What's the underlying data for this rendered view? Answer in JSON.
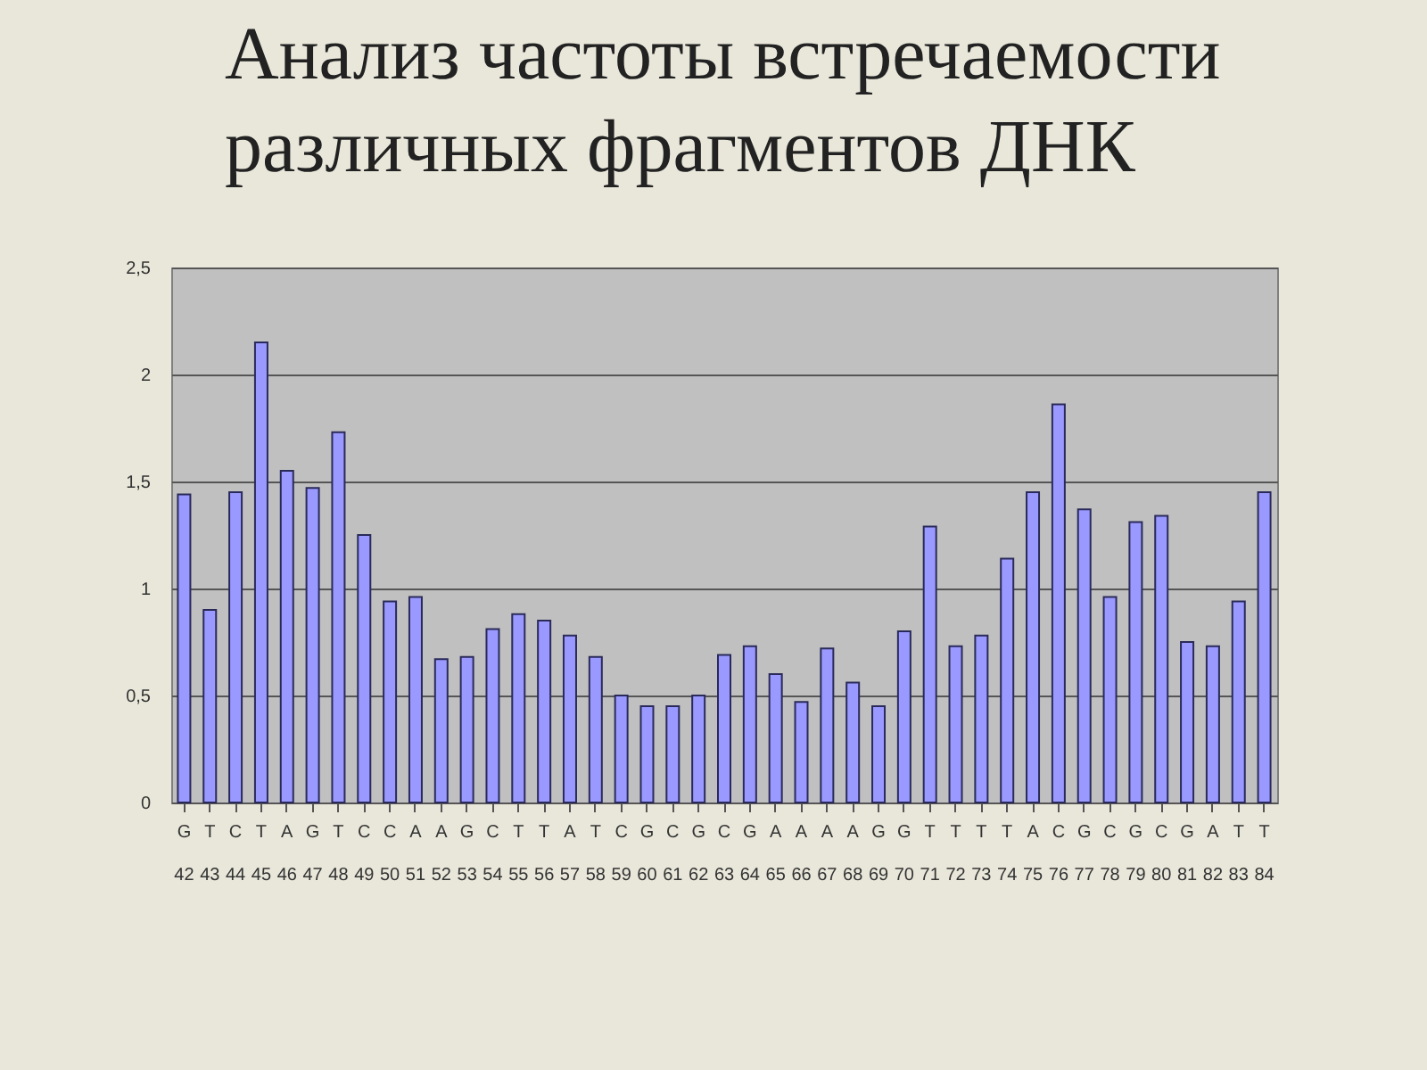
{
  "chart_data": {
    "type": "bar",
    "title": "Анализ частоты встречаемости\nразличных фрагментов ДНК",
    "categories": [
      "G\n42",
      "T\n43",
      "C\n44",
      "T\n45",
      "A\n46",
      "G\n47",
      "T\n48",
      "C\n49",
      "C\n50",
      "A\n51",
      "A\n52",
      "G\n53",
      "C\n54",
      "T\n55",
      "T\n56",
      "A\n57",
      "T\n58",
      "C\n59",
      "G\n60",
      "C\n61",
      "G\n62",
      "C\n63",
      "G\n64",
      "A\n65",
      "A\n66",
      "A\n67",
      "A\n68",
      "G\n69",
      "G\n70",
      "T\n71",
      "T\n72",
      "T\n73",
      "T\n74",
      "A\n75",
      "C\n76",
      "G\n77",
      "C\n78",
      "G\n79",
      "C\n80",
      "G\n81",
      "A\n82",
      "T\n83",
      "T\n84"
    ],
    "values": [
      1.44,
      0.9,
      1.45,
      2.15,
      1.55,
      1.47,
      1.73,
      1.25,
      0.94,
      0.96,
      0.67,
      0.68,
      0.81,
      0.88,
      0.85,
      0.78,
      0.68,
      0.5,
      0.45,
      0.45,
      0.5,
      0.69,
      0.73,
      0.6,
      0.47,
      0.72,
      0.56,
      0.45,
      0.8,
      1.29,
      0.73,
      0.78,
      1.14,
      1.45,
      1.86,
      1.37,
      0.96,
      1.31,
      1.34,
      0.75,
      0.73,
      0.94,
      1.45
    ],
    "color": "#9999ff",
    "ylim": [
      0,
      2.5
    ],
    "yticks": [
      {
        "value": 0,
        "label": "0"
      },
      {
        "value": 0.5,
        "label": "0,5"
      },
      {
        "value": 1,
        "label": "1"
      },
      {
        "value": 1.5,
        "label": "1,5"
      },
      {
        "value": 2,
        "label": "2"
      },
      {
        "value": 2.5,
        "label": "2,5"
      }
    ],
    "grid": "y"
  }
}
